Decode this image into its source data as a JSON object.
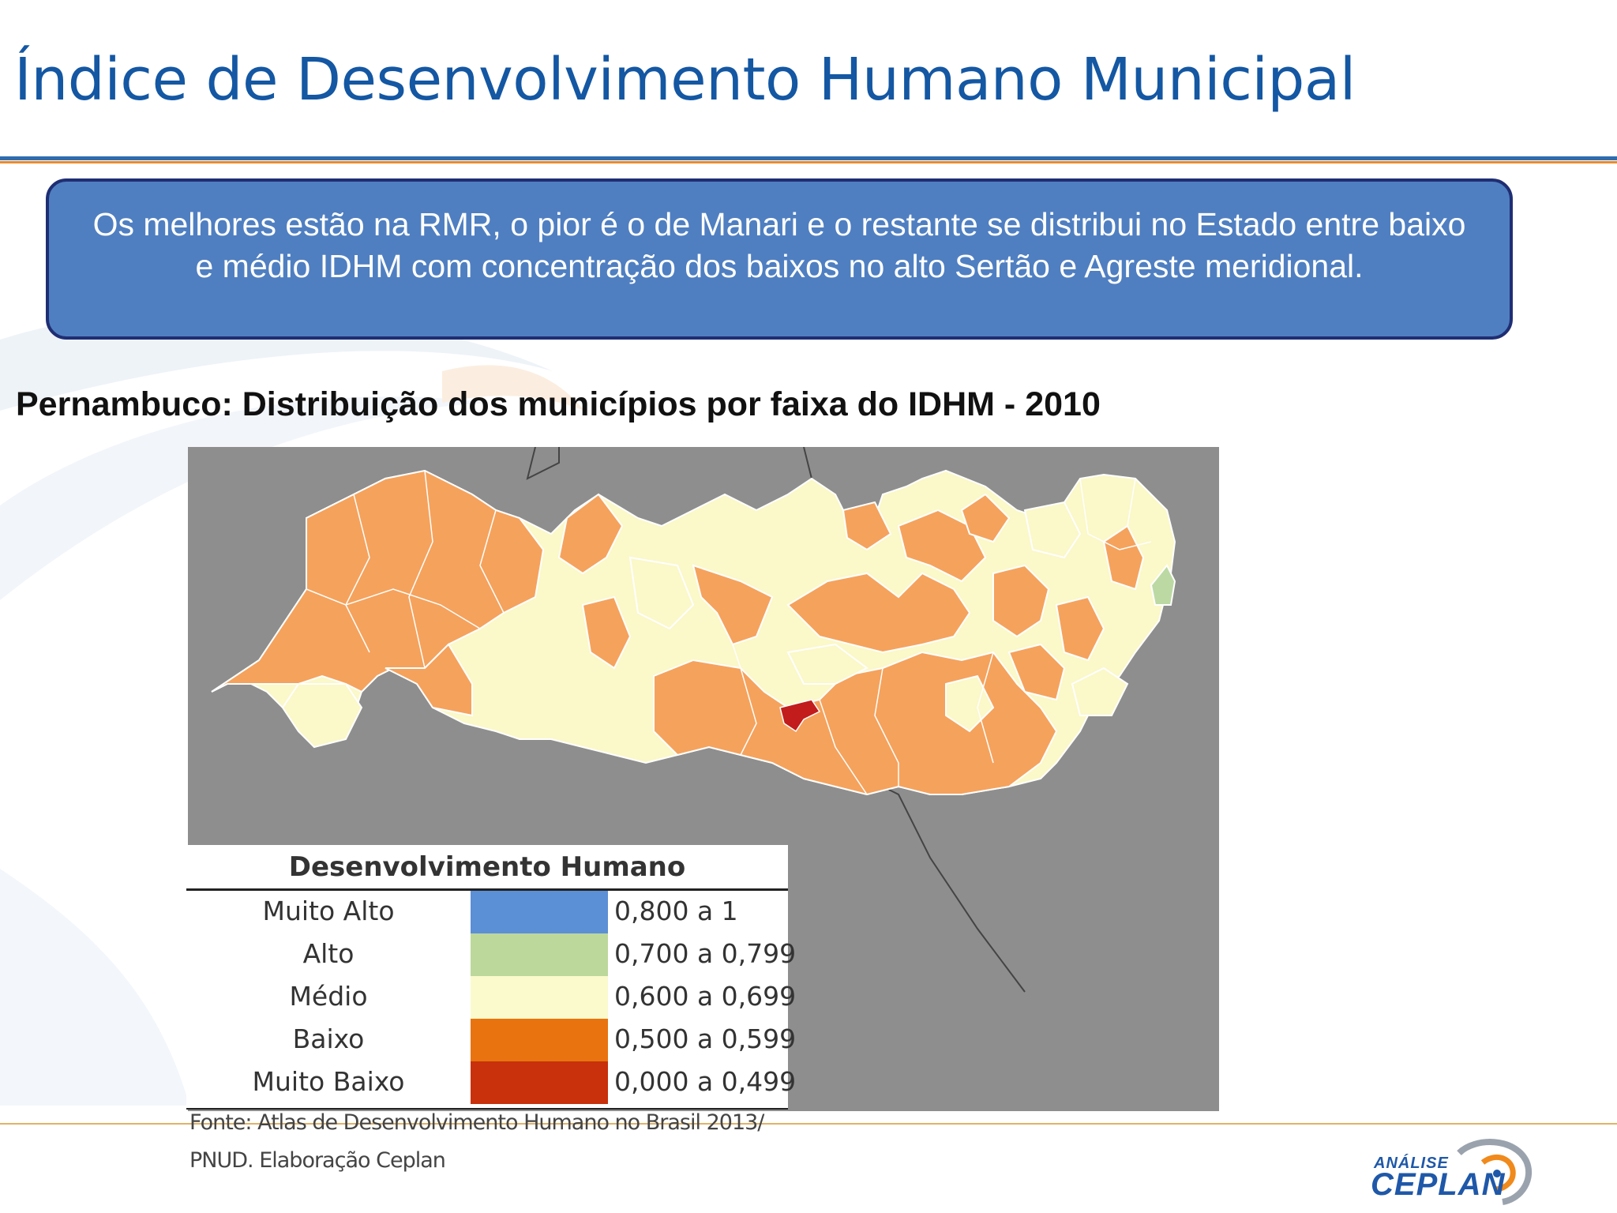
{
  "slide": {
    "title": "Índice de Desenvolvimento Humano Municipal",
    "callout": "Os melhores estão na RMR, o pior é o de Manari e o restante se distribui no Estado entre  baixo e médio IDHM com concentração dos baixos no alto  Sertão e Agreste meridional.",
    "subtitle": "Pernambuco: Distribuição dos municípios por faixa do IDHM  - 2010"
  },
  "map": {
    "colors": {
      "background": "#8e8e8e",
      "borders": "#ffffff",
      "baixo": "#f5a25c",
      "medio": "#fbf8c9",
      "alto": "#bcd9a3",
      "muito_baixo": "#c21c1c"
    }
  },
  "legend": {
    "title": "Desenvolvimento Humano",
    "items": [
      {
        "label": "Muito Alto",
        "range": "0,800 a 1",
        "color": "#5b8fd6"
      },
      {
        "label": "Alto",
        "range": "0,700 a 0,799",
        "color": "#bcd89b"
      },
      {
        "label": "Médio",
        "range": "0,600 a 0,699",
        "color": "#fbfacc"
      },
      {
        "label": "Baixo",
        "range": "0,500 a 0,599",
        "color": "#e8730f"
      },
      {
        "label": "Muito Baixo",
        "range": "0,000 a 0,499",
        "color": "#c8310b"
      }
    ]
  },
  "source": {
    "line1": "Fonte: Atlas de Desenvolvimento Humano no Brasil 2013/",
    "line2": "PNUD. Elaboração Ceplan"
  },
  "logo": {
    "small": "ANÁLISE",
    "big": "CEPLAN"
  }
}
